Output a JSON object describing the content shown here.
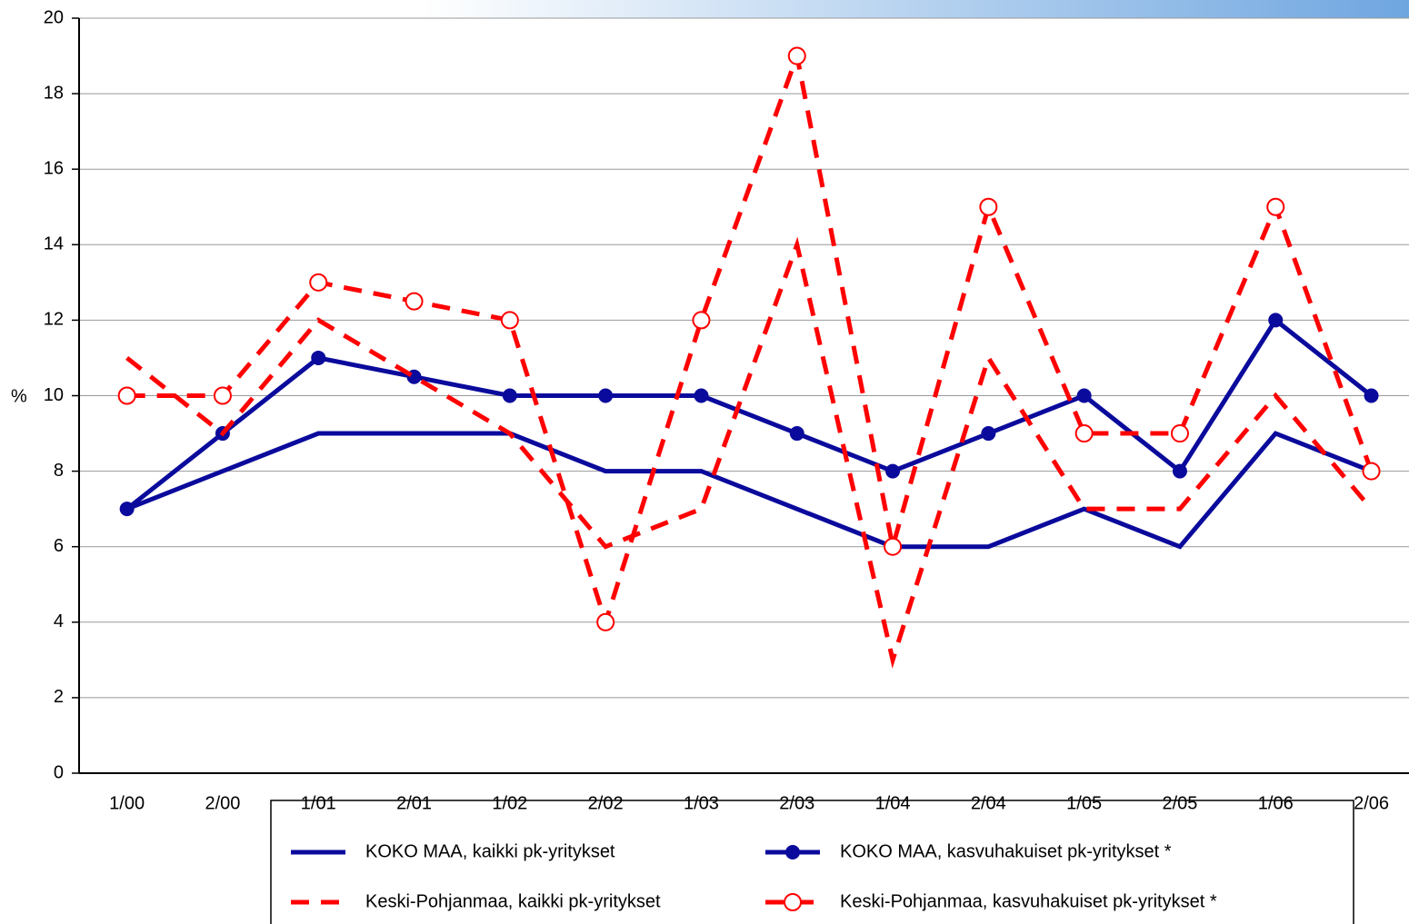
{
  "chart_data": {
    "type": "line",
    "ylabel": "%",
    "categories": [
      "1/00",
      "2/00",
      "1/01",
      "2/01",
      "1/02",
      "2/02",
      "1/03",
      "2/03",
      "1/04",
      "2/04",
      "1/05",
      "2/05",
      "1/06",
      "2/06"
    ],
    "series": [
      {
        "name": "KOKO MAA, kaikki pk-yritykset",
        "color": "#0a0a9c",
        "dashed": false,
        "values": [
          7,
          8,
          9,
          9,
          9,
          8,
          8,
          7,
          6,
          6,
          7,
          6,
          9,
          8
        ]
      },
      {
        "name": "KOKO MAA, kasvuhakuiset pk-yritykset *",
        "color": "#0a0a9c",
        "dashed": false,
        "marker": "filled",
        "values": [
          7,
          9,
          11,
          10.5,
          10,
          10,
          10,
          9,
          8,
          9,
          10,
          8,
          12,
          10
        ]
      },
      {
        "name": "Keski-Pohjanmaa, kaikki pk-yritykset",
        "color": "#ff0000",
        "dashed": true,
        "values": [
          11,
          9,
          12,
          10.5,
          9,
          6,
          7,
          14,
          3,
          11,
          7,
          7,
          10,
          7
        ]
      },
      {
        "name": "Keski-Pohjanmaa, kasvuhakuiset pk-yritykset *",
        "color": "#ff0000",
        "dashed": true,
        "marker": "hollow",
        "values": [
          10,
          10,
          13,
          12.5,
          12,
          4,
          12,
          19,
          6,
          15,
          9,
          9,
          15,
          8
        ]
      }
    ],
    "ylim": [
      0,
      20
    ],
    "yticks": [
      0,
      2,
      4,
      6,
      8,
      10,
      12,
      14,
      16,
      18,
      20
    ],
    "grid": true
  }
}
